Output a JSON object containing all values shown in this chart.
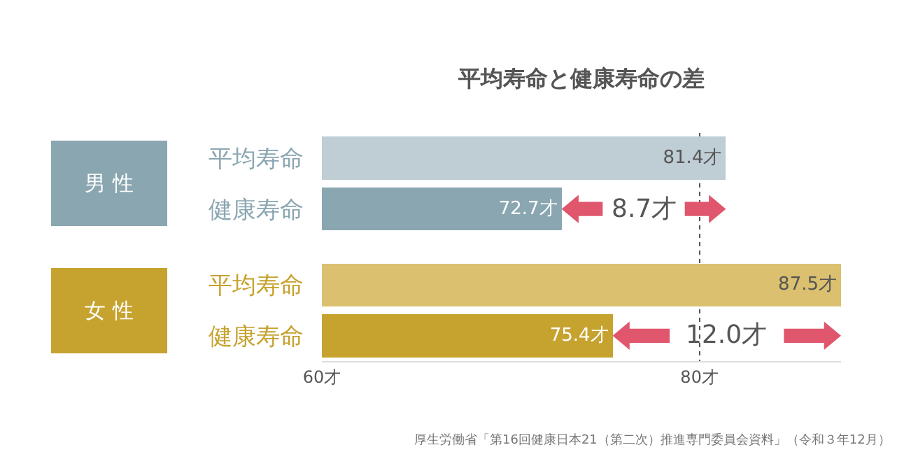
{
  "chart_data": {
    "type": "bar",
    "orientation": "horizontal",
    "title": "平均寿命と健康寿命の差",
    "categories": [
      "平均寿命",
      "健康寿命",
      "平均寿命",
      "健康寿命"
    ],
    "values": [
      81.4,
      72.7,
      87.5,
      75.4
    ],
    "colors": [
      "#bfcdd4",
      "#8aa6b1",
      "#dbc06f",
      "#c6a22f"
    ],
    "value_labels": [
      "81.4才",
      "72.7才",
      "87.5才",
      "75.4才"
    ],
    "xlim": [
      60,
      87.5
    ],
    "xticks": [
      {
        "value": 60,
        "label": "60才"
      },
      {
        "value": 80,
        "label": "80才"
      }
    ],
    "grid": "x",
    "line_style": "dotted",
    "annotations": [
      "男 性",
      "女 性",
      {
        "text": "8.7才",
        "x": 72.7
      },
      {
        "text": "12.0才",
        "x": 75.4
      },
      "厚生労働省「第16回健康日本21（第二次）推進専門委員会資料」（令和３年12月）"
    ]
  }
}
